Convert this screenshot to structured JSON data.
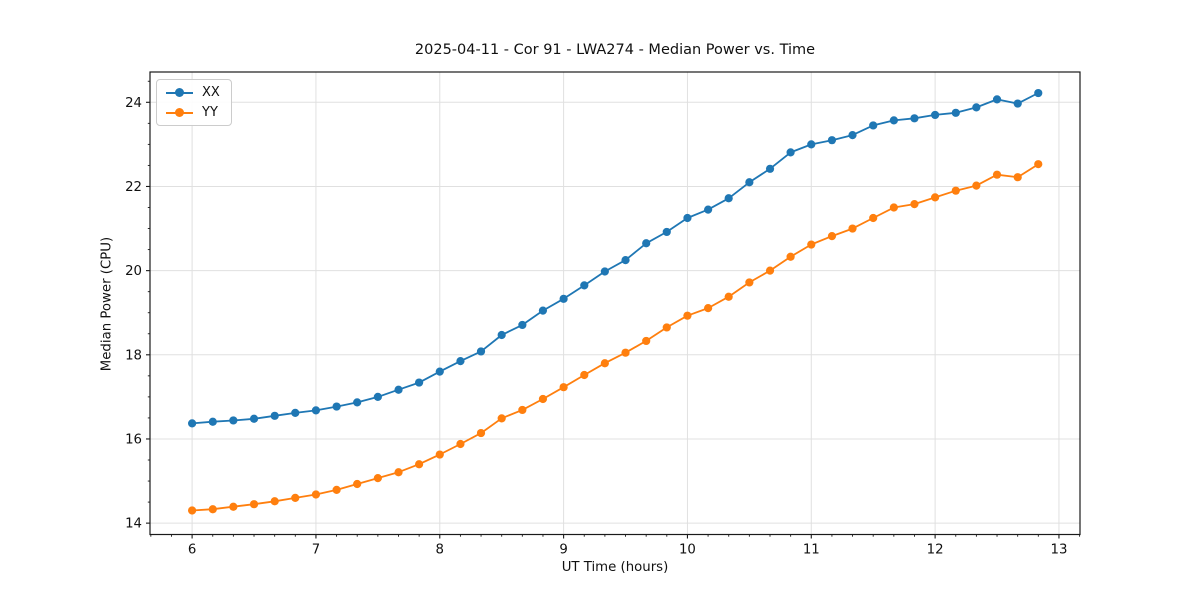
{
  "chart_data": {
    "type": "line",
    "title": "2025-04-11 - Cor 91 - LWA274 - Median Power vs. Time",
    "xlabel": "UT Time (hours)",
    "ylabel": "Median Power (CPU)",
    "xlim": [
      5.66,
      13.17
    ],
    "ylim": [
      13.73,
      24.72
    ],
    "xticks": [
      6,
      7,
      8,
      9,
      10,
      11,
      12,
      13
    ],
    "yticks": [
      14,
      16,
      18,
      20,
      22,
      24
    ],
    "x_minor_step": 0.1666667,
    "y_minor_step": 0.5,
    "grid": true,
    "grid_color": "#e0e0e0",
    "spine_color": "#1a1a1a",
    "legend_position": "upper left",
    "x": [
      6.0,
      6.167,
      6.333,
      6.5,
      6.667,
      6.833,
      7.0,
      7.167,
      7.333,
      7.5,
      7.667,
      7.833,
      8.0,
      8.167,
      8.333,
      8.5,
      8.667,
      8.833,
      9.0,
      9.167,
      9.333,
      9.5,
      9.667,
      9.833,
      10.0,
      10.167,
      10.333,
      10.5,
      10.667,
      10.833,
      11.0,
      11.167,
      11.333,
      11.5,
      11.667,
      11.833,
      12.0,
      12.167,
      12.333,
      12.5,
      12.667,
      12.833
    ],
    "series": [
      {
        "name": "XX",
        "color": "#1f77b4",
        "values": [
          16.37,
          16.41,
          16.44,
          16.48,
          16.55,
          16.62,
          16.68,
          16.77,
          16.87,
          17.0,
          17.17,
          17.34,
          17.6,
          17.85,
          18.08,
          18.47,
          18.71,
          19.05,
          19.33,
          19.65,
          19.98,
          20.25,
          20.65,
          20.92,
          21.25,
          21.45,
          21.72,
          22.1,
          22.42,
          22.81,
          23.0,
          23.1,
          23.22,
          23.45,
          23.57,
          23.62,
          23.7,
          23.75,
          23.88,
          24.07,
          23.97,
          24.22
        ]
      },
      {
        "name": "YY",
        "color": "#ff7f0e",
        "values": [
          14.3,
          14.33,
          14.39,
          14.45,
          14.52,
          14.6,
          14.68,
          14.79,
          14.93,
          15.07,
          15.21,
          15.4,
          15.63,
          15.88,
          16.14,
          16.49,
          16.69,
          16.95,
          17.23,
          17.52,
          17.8,
          18.05,
          18.33,
          18.65,
          18.93,
          19.11,
          19.38,
          19.72,
          20.0,
          20.33,
          20.62,
          20.82,
          21.0,
          21.25,
          21.5,
          21.58,
          21.74,
          21.9,
          22.02,
          22.28,
          22.22,
          22.53
        ]
      }
    ]
  }
}
